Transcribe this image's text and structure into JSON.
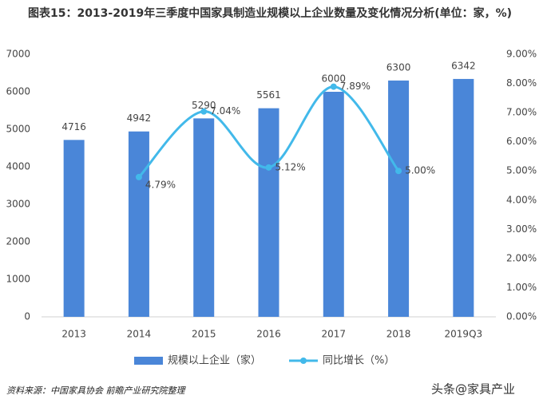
{
  "chart_data": {
    "type": "bar-line",
    "title": "图表15：2013-2019年三季度中国家具制造业规模以上企业数量及变化情况分析(单位：家，%)",
    "categories": [
      "2013",
      "2014",
      "2015",
      "2016",
      "2017",
      "2018",
      "2019Q3"
    ],
    "series": [
      {
        "name": "规模以上企业（家）",
        "type": "bar",
        "color": "#4a86d8",
        "values": [
          4716,
          4942,
          5290,
          5561,
          6000,
          6300,
          6342
        ]
      },
      {
        "name": "同比增长（%）",
        "type": "line",
        "axis": "y2",
        "color": "#42b9ea",
        "values": [
          null,
          4.79,
          7.04,
          5.12,
          7.89,
          5.0,
          null
        ],
        "value_labels": [
          null,
          "4.79%",
          "7.04%",
          "5.12%",
          "7.89%",
          "5.00%",
          null
        ]
      }
    ],
    "ylim": [
      0,
      7000
    ],
    "yticks": [
      0,
      1000,
      2000,
      3000,
      4000,
      5000,
      6000,
      7000
    ],
    "y2lim": [
      0,
      9
    ],
    "y2ticks": [
      {
        "value": 0,
        "label": "0.00%"
      },
      {
        "value": 1,
        "label": "1.00%"
      },
      {
        "value": 2,
        "label": "2.00%"
      },
      {
        "value": 3,
        "label": "3.00%"
      },
      {
        "value": 4,
        "label": "4.00%"
      },
      {
        "value": 5,
        "label": "5.00%"
      },
      {
        "value": 6,
        "label": "6.00%"
      },
      {
        "value": 7,
        "label": "7.00%"
      },
      {
        "value": 8,
        "label": "8.00%"
      },
      {
        "value": 9,
        "label": "9.00%"
      }
    ],
    "grid": false,
    "legend": "bottom",
    "source": "资料来源：中国家具协会 前瞻产业研究院整理",
    "watermark": "头条@家具产业"
  }
}
